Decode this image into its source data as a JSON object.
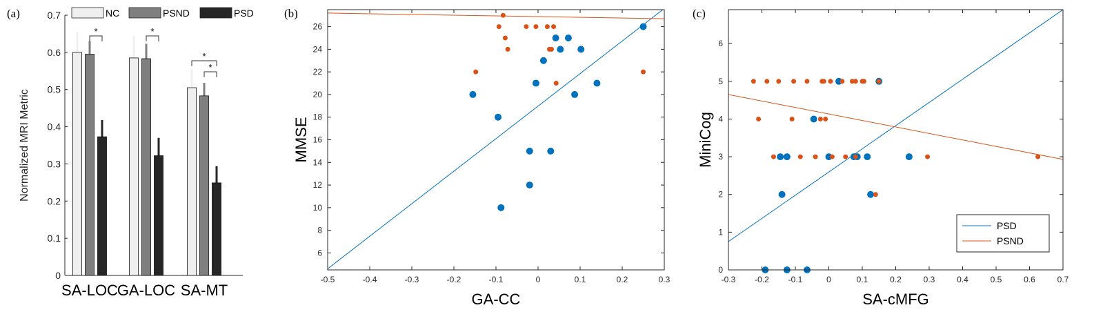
{
  "panels": {
    "a": {
      "label": "(a)"
    },
    "b": {
      "label": "(b)"
    },
    "c": {
      "label": "(c)"
    }
  },
  "colors": {
    "NC": "#efefef",
    "PSND": "#7f7f7f",
    "PSD": "#262626",
    "blue": "#0072bd",
    "orange": "#d95319"
  },
  "chart_data": [
    {
      "type": "bar",
      "title": "",
      "xlabel": "",
      "ylabel": "Normalized MRI Metric",
      "ylim": [
        0,
        0.7
      ],
      "yticks": [
        "0",
        "0.1",
        "0.2",
        "0.3",
        "0.4",
        "0.5",
        "0.6",
        "0.7"
      ],
      "categories": [
        "SA-LOC",
        "GA-LOC",
        "SA-MT"
      ],
      "series": [
        {
          "name": "NC",
          "values": [
            0.6,
            0.585,
            0.505
          ],
          "errors": [
            0.055,
            0.06,
            0.05
          ]
        },
        {
          "name": "PSND",
          "values": [
            0.595,
            0.583,
            0.483
          ],
          "errors": [
            0.035,
            0.04,
            0.035
          ]
        },
        {
          "name": "PSD",
          "values": [
            0.373,
            0.322,
            0.249
          ],
          "errors": [
            0.045,
            0.048,
            0.045
          ]
        }
      ],
      "significance": [
        {
          "category": 0,
          "from": "PSND",
          "to": "PSD",
          "label": "*"
        },
        {
          "category": 1,
          "from": "PSND",
          "to": "PSD",
          "label": "*"
        },
        {
          "category": 2,
          "from": "NC",
          "to": "PSD",
          "label": "*"
        },
        {
          "category": 2,
          "from": "PSND",
          "to": "PSD",
          "label": "*"
        }
      ],
      "legend": "top"
    },
    {
      "type": "scatter",
      "xlabel": "GA-CC",
      "ylabel": "MMSE",
      "xlim": [
        -0.5,
        0.3
      ],
      "ylim": [
        4.5,
        27.5
      ],
      "xticks": [
        "-0.5",
        "-0.4",
        "-0.3",
        "-0.2",
        "-0.1",
        "0",
        "0.1",
        "0.2",
        "0.3"
      ],
      "yticks": [
        "6",
        "8",
        "10",
        "12",
        "14",
        "16",
        "18",
        "20",
        "22",
        "24",
        "26"
      ],
      "series": [
        {
          "name": "PSD",
          "points": [
            [
              -0.155,
              20
            ],
            [
              -0.095,
              18
            ],
            [
              -0.088,
              10
            ],
            [
              -0.02,
              15
            ],
            [
              -0.02,
              12
            ],
            [
              -0.005,
              21
            ],
            [
              0.013,
              23
            ],
            [
              0.03,
              15
            ],
            [
              0.042,
              25
            ],
            [
              0.053,
              24
            ],
            [
              0.072,
              25
            ],
            [
              0.087,
              20
            ],
            [
              0.102,
              24
            ],
            [
              0.14,
              21
            ],
            [
              0.25,
              26
            ]
          ],
          "fit": [
            [
              -0.5,
              4.6
            ],
            [
              0.3,
              27.6
            ]
          ]
        },
        {
          "name": "PSND",
          "points": [
            [
              -0.148,
              22
            ],
            [
              -0.093,
              26
            ],
            [
              -0.083,
              27
            ],
            [
              -0.078,
              25
            ],
            [
              -0.072,
              24
            ],
            [
              -0.028,
              26
            ],
            [
              -0.005,
              26
            ],
            [
              0.022,
              26
            ],
            [
              0.027,
              24
            ],
            [
              0.032,
              24
            ],
            [
              0.037,
              26
            ],
            [
              0.043,
              21
            ],
            [
              0.25,
              22
            ]
          ],
          "fit": [
            [
              -0.5,
              27.2
            ],
            [
              0.3,
              26.7
            ]
          ]
        }
      ]
    },
    {
      "type": "scatter",
      "xlabel": "SA-cMFG",
      "ylabel": "MiniCog",
      "xlim": [
        -0.3,
        0.7
      ],
      "ylim": [
        0,
        6.9
      ],
      "xticks": [
        "-0.3",
        "-0.2",
        "-0.1",
        "0",
        "0.1",
        "0.2",
        "0.3",
        "0.4",
        "0.5",
        "0.6",
        "0.7"
      ],
      "yticks": [
        "0",
        "1",
        "2",
        "3",
        "4",
        "5",
        "6"
      ],
      "legend": "bottom-right",
      "series": [
        {
          "name": "PSD",
          "points": [
            [
              -0.19,
              0
            ],
            [
              -0.125,
              0
            ],
            [
              -0.065,
              0
            ],
            [
              -0.14,
              2
            ],
            [
              -0.145,
              3
            ],
            [
              -0.125,
              3
            ],
            [
              -0.045,
              4
            ],
            [
              0.0,
              3
            ],
            [
              0.075,
              3
            ],
            [
              0.085,
              3
            ],
            [
              0.115,
              3
            ],
            [
              0.125,
              2
            ],
            [
              0.03,
              5
            ],
            [
              0.15,
              5
            ],
            [
              0.24,
              3
            ]
          ],
          "fit": [
            [
              -0.3,
              0.75
            ],
            [
              0.7,
              6.9
            ]
          ]
        },
        {
          "name": "PSND",
          "points": [
            [
              -0.225,
              5
            ],
            [
              -0.185,
              5
            ],
            [
              -0.15,
              5
            ],
            [
              -0.105,
              5
            ],
            [
              -0.065,
              5
            ],
            [
              -0.02,
              5
            ],
            [
              -0.015,
              5
            ],
            [
              0.005,
              5
            ],
            [
              0.04,
              5
            ],
            [
              0.07,
              5
            ],
            [
              0.08,
              5
            ],
            [
              0.1,
              5
            ],
            [
              0.105,
              5
            ],
            [
              0.15,
              5
            ],
            [
              -0.21,
              4
            ],
            [
              -0.11,
              4
            ],
            [
              -0.025,
              4
            ],
            [
              -0.01,
              4
            ],
            [
              -0.165,
              3
            ],
            [
              -0.085,
              3
            ],
            [
              -0.04,
              3
            ],
            [
              0.01,
              3
            ],
            [
              0.05,
              3
            ],
            [
              0.08,
              3
            ],
            [
              0.295,
              3
            ],
            [
              0.625,
              3
            ],
            [
              0.14,
              2
            ]
          ],
          "fit": [
            [
              -0.3,
              4.65
            ],
            [
              0.7,
              2.93
            ]
          ]
        }
      ]
    }
  ]
}
